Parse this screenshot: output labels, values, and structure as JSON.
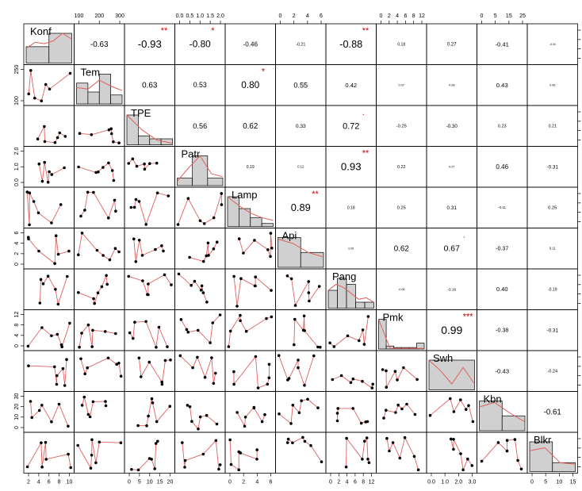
{
  "chart_data": {
    "type": "scatter-matrix",
    "variables": [
      "Konf",
      "Tem",
      "TPE",
      "Patr",
      "Lamp",
      "Api",
      "Pang",
      "Pmk",
      "Swh",
      "Kbn",
      "Blkr"
    ],
    "correlations": [
      {
        "row": 0,
        "col": 1,
        "r": "-0.63",
        "stars": ""
      },
      {
        "row": 0,
        "col": 2,
        "r": "-0.93",
        "stars": "**"
      },
      {
        "row": 0,
        "col": 3,
        "r": "-0.80",
        "stars": "*"
      },
      {
        "row": 0,
        "col": 4,
        "r": "-0.46",
        "stars": ""
      },
      {
        "row": 0,
        "col": 5,
        "r": "-0.21",
        "stars": ""
      },
      {
        "row": 0,
        "col": 6,
        "r": "-0.88",
        "stars": "**"
      },
      {
        "row": 0,
        "col": 7,
        "r": "0.18",
        "stars": ""
      },
      {
        "row": 0,
        "col": 8,
        "r": "0.27",
        "stars": ""
      },
      {
        "row": 0,
        "col": 9,
        "r": "-0.41",
        "stars": ""
      },
      {
        "row": 0,
        "col": 10,
        "r": "-0.04",
        "stars": ""
      },
      {
        "row": 1,
        "col": 2,
        "r": "0.63",
        "stars": ""
      },
      {
        "row": 1,
        "col": 3,
        "r": "0.53",
        "stars": ""
      },
      {
        "row": 1,
        "col": 4,
        "r": "0.80",
        "stars": "*"
      },
      {
        "row": 1,
        "col": 5,
        "r": "0.55",
        "stars": ""
      },
      {
        "row": 1,
        "col": 6,
        "r": "0.42",
        "stars": ""
      },
      {
        "row": 1,
        "col": 7,
        "r": "0.07",
        "stars": ""
      },
      {
        "row": 1,
        "col": 8,
        "r": "0.08",
        "stars": ""
      },
      {
        "row": 1,
        "col": 9,
        "r": "0.43",
        "stars": ""
      },
      {
        "row": 1,
        "col": 10,
        "r": "0.06",
        "stars": ""
      },
      {
        "row": 2,
        "col": 3,
        "r": "0.56",
        "stars": ""
      },
      {
        "row": 2,
        "col": 4,
        "r": "0.62",
        "stars": ""
      },
      {
        "row": 2,
        "col": 5,
        "r": "0.33",
        "stars": ""
      },
      {
        "row": 2,
        "col": 6,
        "r": "0.72",
        "stars": "."
      },
      {
        "row": 2,
        "col": 7,
        "r": "-0.25",
        "stars": ""
      },
      {
        "row": 2,
        "col": 8,
        "r": "-0.30",
        "stars": ""
      },
      {
        "row": 2,
        "col": 9,
        "r": "0.23",
        "stars": ""
      },
      {
        "row": 2,
        "col": 10,
        "r": "0.21",
        "stars": ""
      },
      {
        "row": 3,
        "col": 4,
        "r": "0.19",
        "stars": ""
      },
      {
        "row": 3,
        "col": 5,
        "r": "0.12",
        "stars": ""
      },
      {
        "row": 3,
        "col": 6,
        "r": "0.93",
        "stars": "**"
      },
      {
        "row": 3,
        "col": 7,
        "r": "0.22",
        "stars": ""
      },
      {
        "row": 3,
        "col": 8,
        "r": "0.07",
        "stars": ""
      },
      {
        "row": 3,
        "col": 9,
        "r": "0.46",
        "stars": ""
      },
      {
        "row": 3,
        "col": 10,
        "r": "-0.31",
        "stars": ""
      },
      {
        "row": 4,
        "col": 5,
        "r": "0.89",
        "stars": "**"
      },
      {
        "row": 4,
        "col": 6,
        "r": "0.18",
        "stars": ""
      },
      {
        "row": 4,
        "col": 7,
        "r": "0.25",
        "stars": ""
      },
      {
        "row": 4,
        "col": 8,
        "r": "0.31",
        "stars": ""
      },
      {
        "row": 4,
        "col": 9,
        "r": "-0.11",
        "stars": ""
      },
      {
        "row": 4,
        "col": 10,
        "r": "0.25",
        "stars": ""
      },
      {
        "row": 5,
        "col": 6,
        "r": "0.05",
        "stars": ""
      },
      {
        "row": 5,
        "col": 7,
        "r": "0.62",
        "stars": ""
      },
      {
        "row": 5,
        "col": 8,
        "r": "0.67",
        "stars": "."
      },
      {
        "row": 5,
        "col": 9,
        "r": "-0.37",
        "stars": ""
      },
      {
        "row": 5,
        "col": 10,
        "r": "0.11",
        "stars": ""
      },
      {
        "row": 6,
        "col": 7,
        "r": "-0.06",
        "stars": ""
      },
      {
        "row": 6,
        "col": 8,
        "r": "-0.16",
        "stars": ""
      },
      {
        "row": 6,
        "col": 9,
        "r": "0.40",
        "stars": ""
      },
      {
        "row": 6,
        "col": 10,
        "r": "-0.19",
        "stars": ""
      },
      {
        "row": 7,
        "col": 8,
        "r": "0.99",
        "stars": "***"
      },
      {
        "row": 7,
        "col": 9,
        "r": "-0.38",
        "stars": ""
      },
      {
        "row": 7,
        "col": 10,
        "r": "-0.31",
        "stars": ""
      },
      {
        "row": 8,
        "col": 9,
        "r": "-0.43",
        "stars": ""
      },
      {
        "row": 8,
        "col": 10,
        "r": "-0.24",
        "stars": ""
      },
      {
        "row": 9,
        "col": 10,
        "r": "-0.61",
        "stars": ""
      }
    ],
    "histograms": [
      [
        0.55,
        1.0
      ],
      [
        0.7,
        0.4,
        1.0,
        0.3
      ],
      [
        1.0,
        0.3,
        0.2,
        0.2
      ],
      [
        0.25,
        1.0,
        0.25
      ],
      [
        1.0,
        0.6,
        0.3,
        0.1
      ],
      [
        1.0,
        0.5
      ],
      [
        0.6,
        1.0,
        0.8,
        0.2,
        0.2
      ],
      [
        1.0,
        0.1,
        0.05,
        0.05,
        0.05,
        0.2
      ],
      [
        1.0
      ],
      [
        1.0,
        0.5
      ],
      [
        1.0,
        0.3
      ]
    ],
    "density_curves": [
      [
        0.5,
        0.7,
        0.65,
        0.75,
        1.0,
        0.8
      ],
      [
        0.55,
        0.5,
        0.8,
        0.6,
        0.45
      ],
      [
        1.0,
        0.5,
        0.15,
        0.05
      ],
      [
        0.15,
        0.6,
        1.0,
        0.4,
        0.3
      ],
      [
        1.0,
        0.7,
        0.45,
        0.3,
        0.2
      ],
      [
        0.95,
        0.8,
        0.5,
        0.35
      ],
      [
        0.6,
        0.8,
        0.7,
        0.5,
        0.3,
        0.35,
        0.2
      ],
      [
        1.0,
        0.02,
        0.02,
        0.02,
        0.02
      ],
      [
        1.0,
        0.65,
        0.2,
        0.75,
        0.2
      ],
      [
        0.8,
        0.95,
        0.6,
        0.3
      ],
      [
        0.7,
        0.8,
        0.3,
        0.25
      ]
    ],
    "tick_axes": {
      "top": [
        {
          "col": 1,
          "ticks": [
            "100",
            "200",
            "300"
          ]
        },
        {
          "col": 3,
          "ticks": [
            "0.0",
            "0.5",
            "1.0",
            "1.5",
            "2.0"
          ]
        },
        {
          "col": 5,
          "ticks": [
            "0",
            "2",
            "4",
            "6"
          ]
        },
        {
          "col": 7,
          "ticks": [
            "0",
            "2",
            "4",
            "6",
            "8",
            "12"
          ]
        },
        {
          "col": 9,
          "ticks": [
            "0",
            "5",
            "15",
            "25"
          ]
        }
      ],
      "bottom": [
        {
          "col": 0,
          "ticks": [
            "2",
            "4",
            "6",
            "8",
            "10"
          ]
        },
        {
          "col": 2,
          "ticks": [
            "0",
            "5",
            "10",
            "15",
            "20"
          ]
        },
        {
          "col": 4,
          "ticks": [
            "0",
            "2",
            "4",
            "6"
          ]
        },
        {
          "col": 6,
          "ticks": [
            "0",
            "2",
            "4",
            "6",
            "8",
            "12"
          ]
        },
        {
          "col": 8,
          "ticks": [
            "0.0",
            "1.0",
            "2.0",
            "3.0"
          ]
        },
        {
          "col": 10,
          "ticks": [
            "0",
            "5",
            "10",
            "15"
          ]
        }
      ],
      "left": [
        {
          "row": 1,
          "ticks": [
            "100",
            "250"
          ]
        },
        {
          "row": 3,
          "ticks": [
            "0.0",
            "1.0",
            "2.0"
          ]
        },
        {
          "row": 5,
          "ticks": [
            "0",
            "2",
            "4",
            "6"
          ]
        },
        {
          "row": 7,
          "ticks": [
            "0",
            "4",
            "8",
            "12"
          ]
        },
        {
          "row": 9,
          "ticks": [
            "0",
            "10",
            "20",
            "30"
          ]
        }
      ]
    },
    "colors": {
      "panel_border": "#000000",
      "histogram_fill": "#d0d0d0",
      "fit_line": "#e06060",
      "points": "#000000",
      "significance_stars": "#cc0000"
    }
  }
}
